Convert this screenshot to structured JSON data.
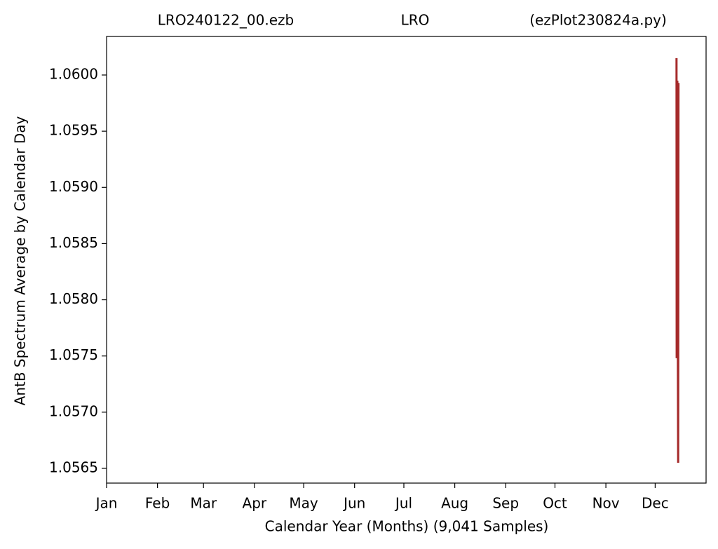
{
  "chart_data": {
    "type": "line",
    "title": [
      "LRO240122_00.ezb",
      "LRO",
      "(ezPlot230824a.py)"
    ],
    "x_label": "Calendar Year (Months) (9,041 Samples)",
    "y_label": "AntB Spectrum Average by Calendar Day",
    "x": [
      348.0,
      348.1,
      348.5,
      348.8,
      349.0,
      349.2
    ],
    "series": [
      {
        "color": "#a52a2a",
        "values": [
          1.06015,
          1.05748,
          1.05995,
          1.0576,
          1.05655,
          1.05993
        ]
      }
    ],
    "xlim": [
      1,
      366
    ],
    "xticks": [
      {
        "value": 1,
        "label": "Jan"
      },
      {
        "value": 32,
        "label": "Feb"
      },
      {
        "value": 60,
        "label": "Mar"
      },
      {
        "value": 91,
        "label": "Apr"
      },
      {
        "value": 121,
        "label": "May"
      },
      {
        "value": 152,
        "label": "Jun"
      },
      {
        "value": 182,
        "label": "Jul"
      },
      {
        "value": 213,
        "label": "Aug"
      },
      {
        "value": 244,
        "label": "Sep"
      },
      {
        "value": 274,
        "label": "Oct"
      },
      {
        "value": 305,
        "label": "Nov"
      },
      {
        "value": 335,
        "label": "Dec"
      }
    ],
    "ylim": [
      1.056369,
      1.060343
    ],
    "yticks": [
      1.0565,
      {
        "value": 1.057,
        "label": "1.0570"
      },
      1.0575,
      {
        "value": 1.058,
        "label": "1.0580"
      },
      1.0585,
      {
        "value": 1.059,
        "label": "1.0590"
      },
      1.0595,
      {
        "value": 1.06,
        "label": "1.0600"
      }
    ]
  }
}
